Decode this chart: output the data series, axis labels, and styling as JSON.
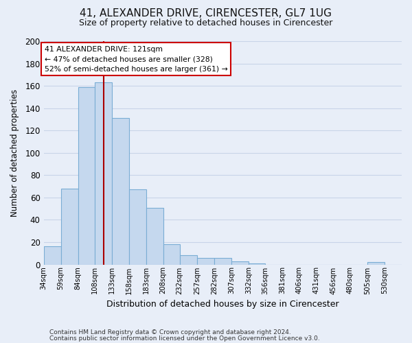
{
  "title": "41, ALEXANDER DRIVE, CIRENCESTER, GL7 1UG",
  "subtitle": "Size of property relative to detached houses in Cirencester",
  "xlabel": "Distribution of detached houses by size in Cirencester",
  "ylabel": "Number of detached properties",
  "bin_labels": [
    "34sqm",
    "59sqm",
    "84sqm",
    "108sqm",
    "133sqm",
    "158sqm",
    "183sqm",
    "208sqm",
    "232sqm",
    "257sqm",
    "282sqm",
    "307sqm",
    "332sqm",
    "356sqm",
    "381sqm",
    "406sqm",
    "431sqm",
    "456sqm",
    "480sqm",
    "505sqm",
    "530sqm"
  ],
  "bar_heights": [
    16,
    68,
    159,
    163,
    131,
    67,
    51,
    18,
    8,
    6,
    6,
    3,
    1,
    0,
    0,
    0,
    0,
    0,
    0,
    2,
    0
  ],
  "bar_color": "#c5d8ee",
  "bar_edge_color": "#7aadd4",
  "property_line_x": 121,
  "property_line_color": "#aa0000",
  "annotation_title": "41 ALEXANDER DRIVE: 121sqm",
  "annotation_line1": "← 47% of detached houses are smaller (328)",
  "annotation_line2": "52% of semi-detached houses are larger (361) →",
  "annotation_box_facecolor": "#ffffff",
  "annotation_box_edgecolor": "#cc0000",
  "ylim": [
    0,
    200
  ],
  "yticks": [
    0,
    20,
    40,
    60,
    80,
    100,
    120,
    140,
    160,
    180,
    200
  ],
  "grid_color": "#c8d4e8",
  "background_color": "#e8eef8",
  "footer_line1": "Contains HM Land Registry data © Crown copyright and database right 2024.",
  "footer_line2": "Contains public sector information licensed under the Open Government Licence v3.0."
}
